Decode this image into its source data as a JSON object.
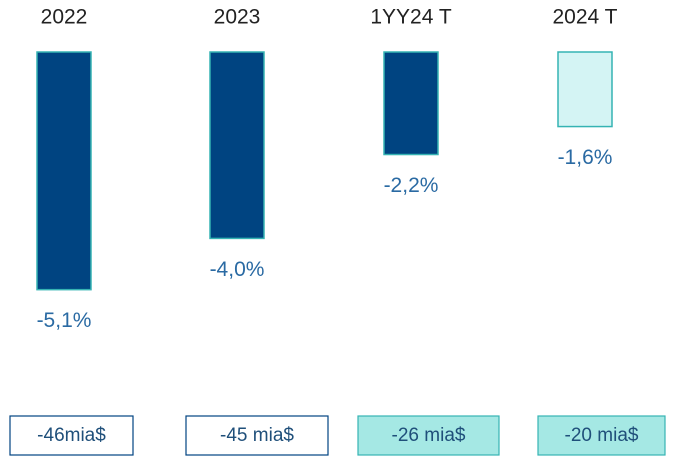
{
  "chart_data": {
    "type": "bar",
    "categories": [
      "2022",
      "2023",
      "1YY24 T",
      "2024 T"
    ],
    "values": [
      -5.1,
      -4.0,
      -2.2,
      -1.6
    ],
    "value_labels": [
      "-5,1%",
      "-4,0%",
      "-2,2%",
      "-1,6%"
    ],
    "colors": [
      "#004481",
      "#004481",
      "#004481",
      "#d4f4f4"
    ],
    "amount_labels": [
      "-46mia$",
      "-45 mia$",
      "-26 mia$",
      "-20 mia$"
    ],
    "amount_colors": [
      "#ffffff",
      "#ffffff",
      "#a5e8e4",
      "#a5e8e4"
    ]
  }
}
